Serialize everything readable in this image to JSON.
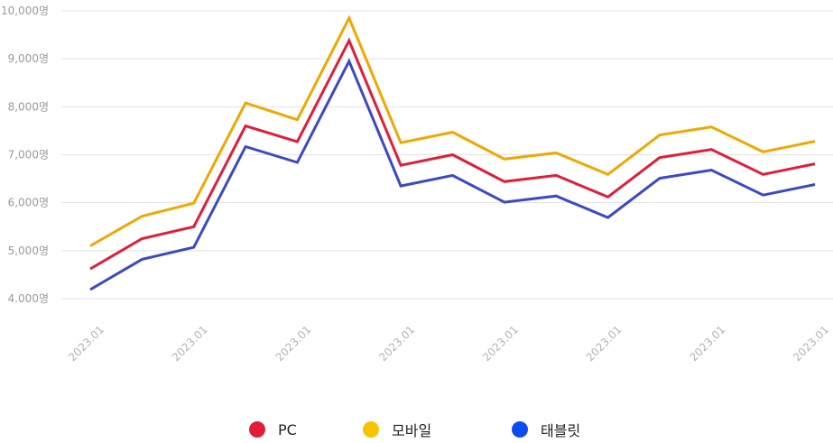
{
  "chart_data": {
    "type": "line",
    "title": "",
    "xlabel": "",
    "ylabel": "",
    "ylim": [
      4000,
      10000
    ],
    "yticks": [
      "4.000명",
      "5,000명",
      "6,000명",
      "7,000명",
      "8,000명",
      "9,000명",
      "10,000명"
    ],
    "ytick_values": [
      4000,
      5000,
      6000,
      7000,
      8000,
      9000,
      10000
    ],
    "xtick_labels": [
      "2023.01",
      "2023.01",
      "2023.01",
      "2023.01",
      "2023.01",
      "2023.01",
      "2023.01",
      "2023.01"
    ],
    "xtick_indices": [
      0,
      2,
      4,
      6,
      8,
      10,
      12,
      14
    ],
    "grid": true,
    "legend_position": "bottom",
    "series": [
      {
        "name": "PC",
        "color": "#e11d3a",
        "values": [
          4620,
          5250,
          5500,
          7600,
          7270,
          9380,
          6780,
          7000,
          6440,
          6570,
          6120,
          6940,
          7110,
          6590,
          6810
        ]
      },
      {
        "name": "모바일",
        "color": "#f0a800",
        "values": [
          5100,
          5720,
          5990,
          8080,
          7730,
          9850,
          7250,
          7470,
          6910,
          7040,
          6590,
          7410,
          7580,
          7060,
          7280
        ]
      },
      {
        "name": "태블릿",
        "color": "#3b49c6",
        "values": [
          4190,
          4820,
          5070,
          7170,
          6840,
          8950,
          6350,
          6570,
          6010,
          6140,
          5690,
          6510,
          6680,
          6160,
          6380
        ]
      }
    ]
  },
  "legend": {
    "items": [
      {
        "label": "PC",
        "color": "#e11d3a"
      },
      {
        "label": "모바일",
        "color": "#f7c400"
      },
      {
        "label": "태블릿",
        "color": "#0a4cf0"
      }
    ]
  }
}
